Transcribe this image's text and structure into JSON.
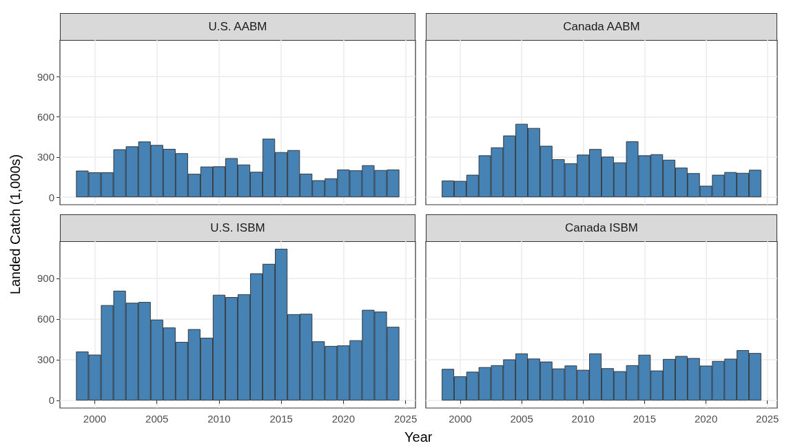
{
  "chart_data": [
    {
      "type": "bar",
      "title": "U.S. AABM",
      "x": [
        1999,
        2000,
        2001,
        2002,
        2003,
        2004,
        2005,
        2006,
        2007,
        2008,
        2009,
        2010,
        2011,
        2012,
        2013,
        2014,
        2015,
        2016,
        2017,
        2018,
        2019,
        2020,
        2021,
        2022,
        2023,
        2024
      ],
      "values": [
        198,
        185,
        185,
        357,
        379,
        415,
        389,
        360,
        328,
        174,
        228,
        230,
        291,
        243,
        189,
        436,
        336,
        351,
        175,
        126,
        140,
        206,
        200,
        238,
        202,
        206
      ],
      "color": "#4682b4",
      "xlim": [
        1997.2,
        2025.8
      ],
      "ylim": [
        -56,
        1173
      ],
      "xticks": [
        2000,
        2005,
        2010,
        2015,
        2020,
        2025
      ],
      "yticks": [
        0,
        300,
        600,
        900
      ],
      "grid": true,
      "tick_labels": "y"
    },
    {
      "type": "bar",
      "title": "Canada AABM",
      "x": [
        1999,
        2000,
        2001,
        2002,
        2003,
        2004,
        2005,
        2006,
        2007,
        2008,
        2009,
        2010,
        2011,
        2012,
        2013,
        2014,
        2015,
        2016,
        2017,
        2018,
        2019,
        2020,
        2021,
        2022,
        2023,
        2024
      ],
      "values": [
        124,
        121,
        167,
        312,
        371,
        460,
        547,
        516,
        383,
        283,
        252,
        317,
        359,
        302,
        259,
        416,
        312,
        320,
        279,
        220,
        179,
        85,
        167,
        187,
        181,
        204
      ],
      "color": "#4682b4",
      "xlim": [
        1997.2,
        2025.8
      ],
      "ylim": [
        -56,
        1173
      ],
      "xticks": [
        2000,
        2005,
        2010,
        2015,
        2020,
        2025
      ],
      "yticks": [
        0,
        300,
        600,
        900
      ],
      "grid": true,
      "tick_labels": false
    },
    {
      "type": "bar",
      "title": "U.S. ISBM",
      "xlabel": "Year",
      "ylabel": "Landed Catch (1,000s)",
      "x": [
        1999,
        2000,
        2001,
        2002,
        2003,
        2004,
        2005,
        2006,
        2007,
        2008,
        2009,
        2010,
        2011,
        2012,
        2013,
        2014,
        2015,
        2016,
        2017,
        2018,
        2019,
        2020,
        2021,
        2022,
        2023,
        2024
      ],
      "values": [
        360,
        337,
        702,
        808,
        719,
        725,
        595,
        537,
        431,
        525,
        461,
        778,
        761,
        782,
        936,
        1006,
        1117,
        635,
        638,
        435,
        401,
        405,
        443,
        667,
        654,
        542
      ],
      "color": "#4682b4",
      "xlim": [
        1997.2,
        2025.8
      ],
      "ylim": [
        -56,
        1173
      ],
      "xticks": [
        2000,
        2005,
        2010,
        2015,
        2020,
        2025
      ],
      "yticks": [
        0,
        300,
        600,
        900
      ],
      "grid": true
    },
    {
      "type": "bar",
      "title": "Canada ISBM",
      "x": [
        1999,
        2000,
        2001,
        2002,
        2003,
        2004,
        2005,
        2006,
        2007,
        2008,
        2009,
        2010,
        2011,
        2012,
        2013,
        2014,
        2015,
        2016,
        2017,
        2018,
        2019,
        2020,
        2021,
        2022,
        2023,
        2024
      ],
      "values": [
        232,
        177,
        211,
        245,
        259,
        302,
        346,
        308,
        286,
        235,
        257,
        225,
        346,
        237,
        215,
        259,
        336,
        220,
        305,
        327,
        312,
        256,
        290,
        307,
        370,
        349
      ],
      "color": "#4682b4",
      "xlim": [
        1997.2,
        2025.8
      ],
      "ylim": [
        -56,
        1173
      ],
      "xticks": [
        2000,
        2005,
        2010,
        2015,
        2020,
        2025
      ],
      "yticks": [
        0,
        300,
        600,
        900
      ],
      "grid": true,
      "tick_labels": "x"
    }
  ]
}
